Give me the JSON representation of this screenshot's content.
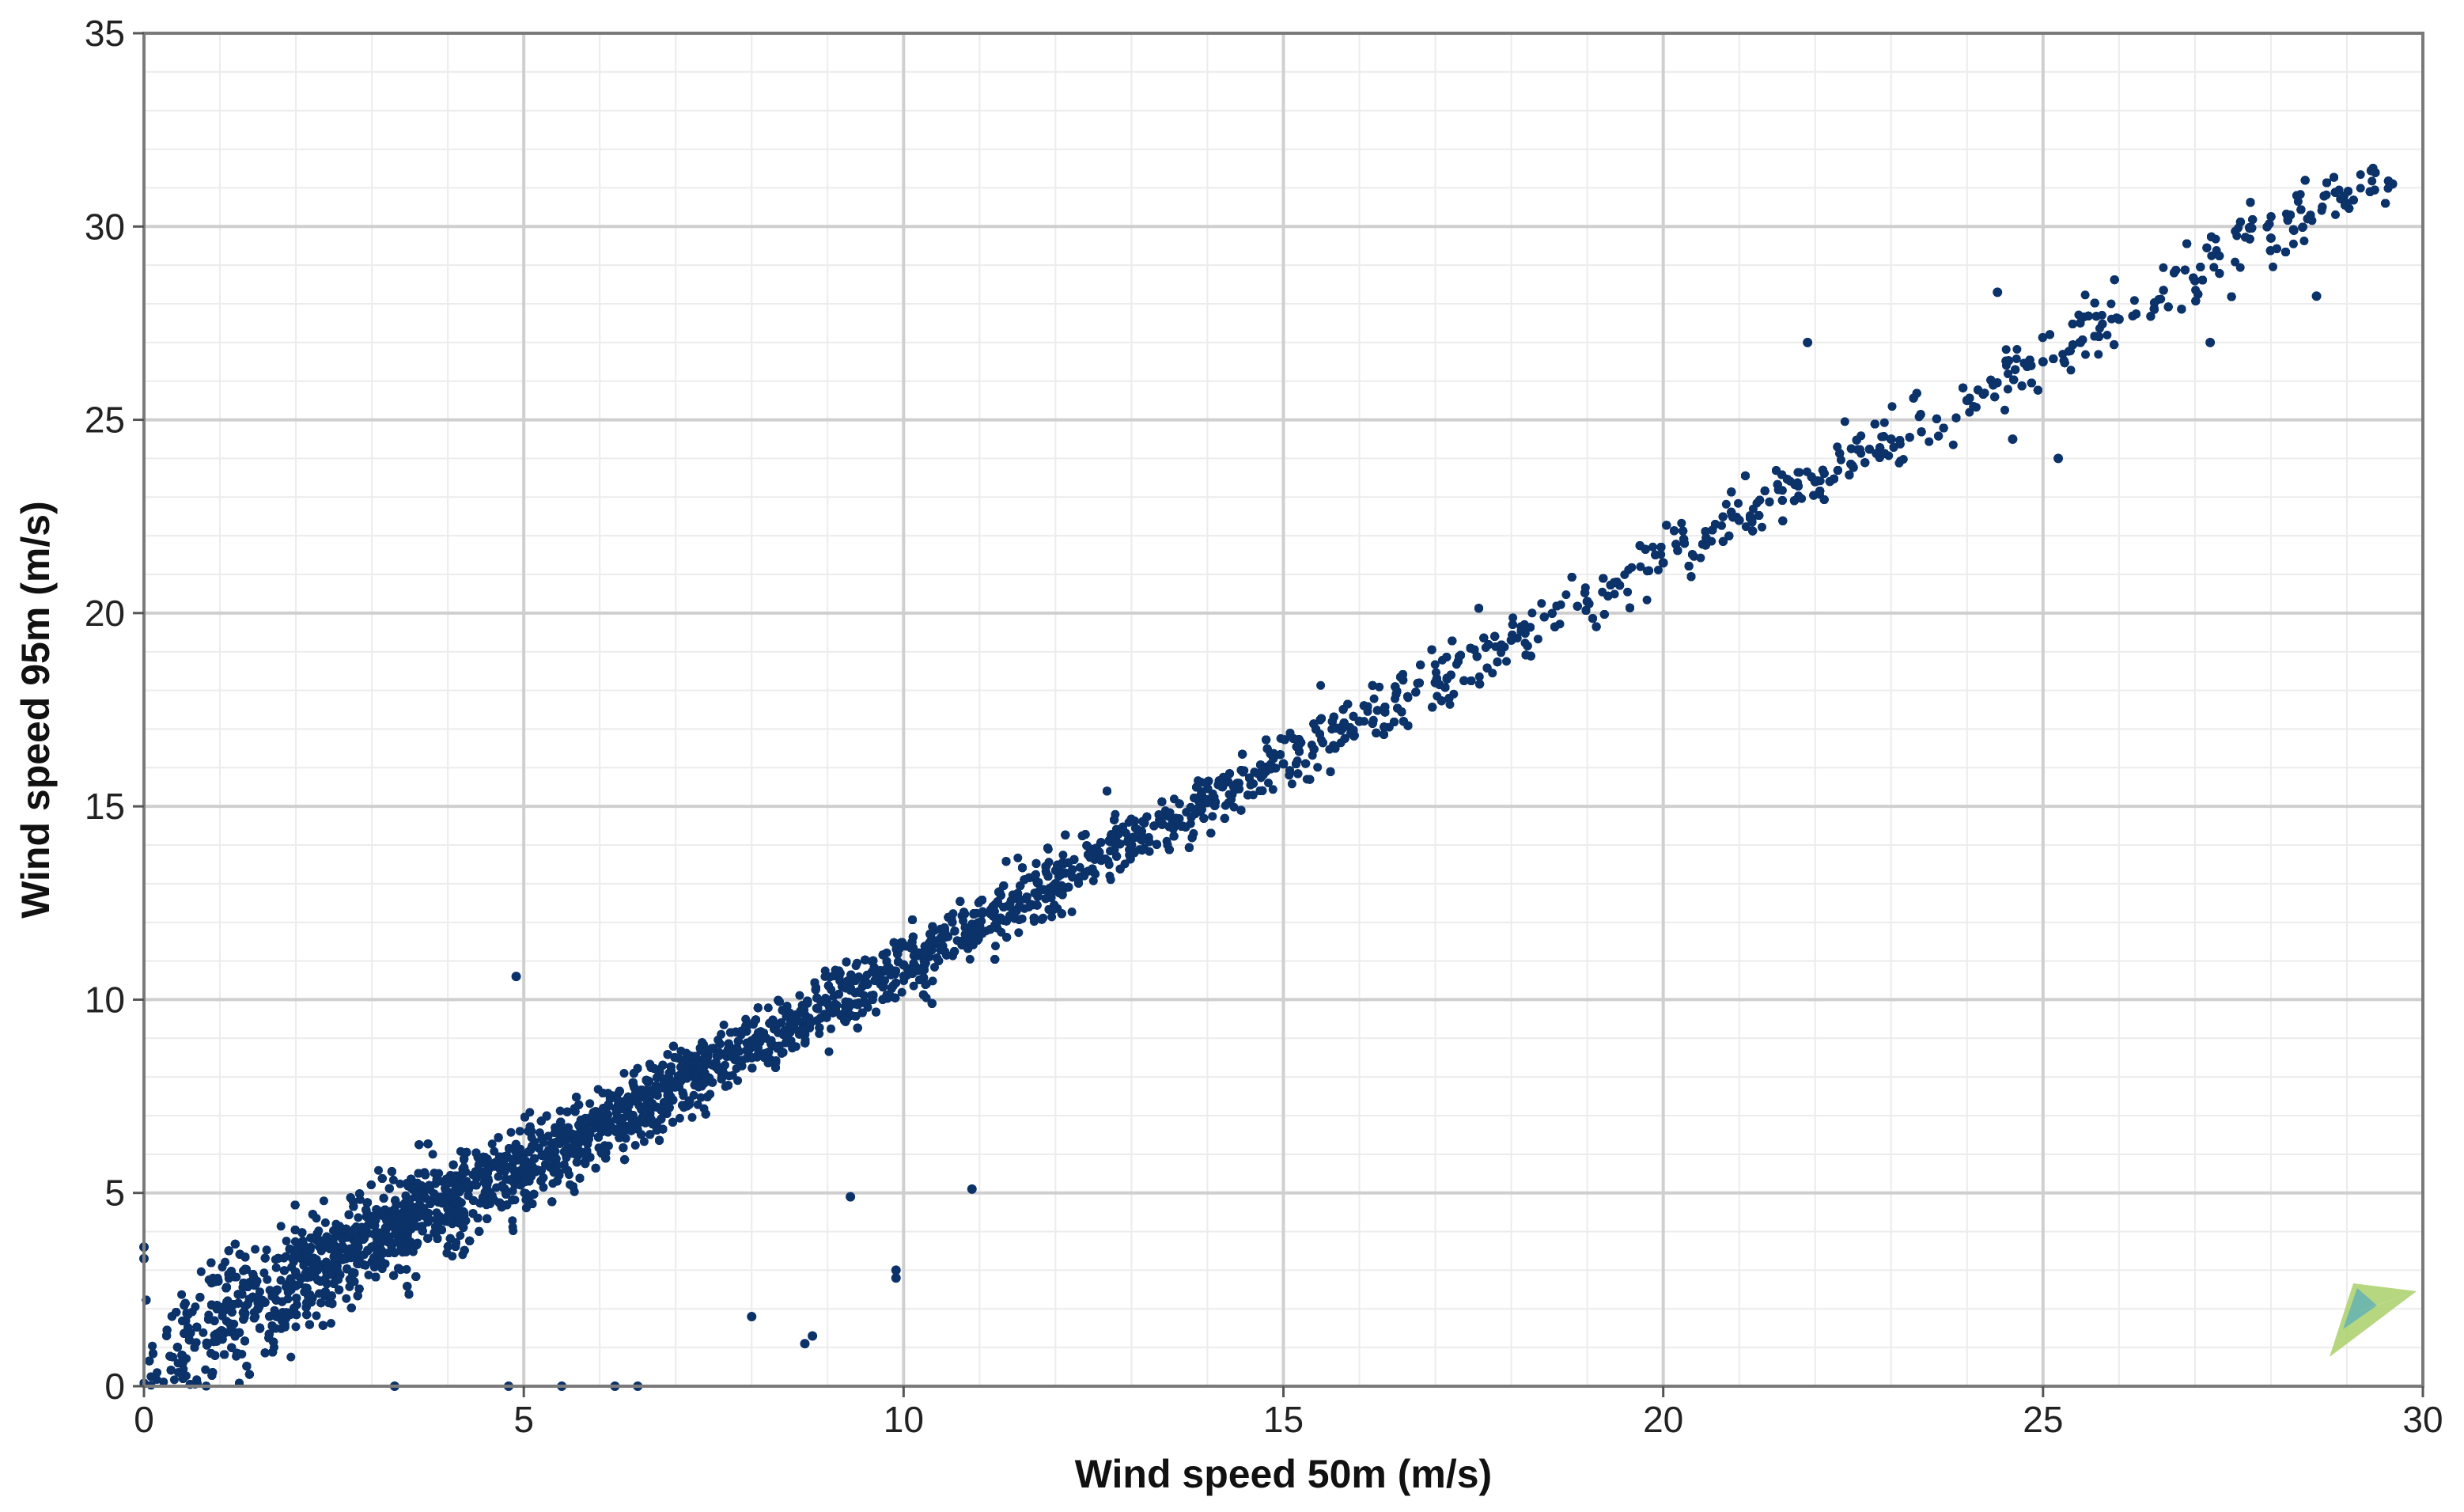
{
  "chart_data": {
    "type": "scatter",
    "title": "",
    "xlabel": "Wind speed 50m (m/s)",
    "ylabel": "Wind speed 95m (m/s)",
    "xlim": [
      0,
      30
    ],
    "ylim": [
      0,
      35
    ],
    "x_ticks": [
      "0",
      "5",
      "10",
      "15",
      "20",
      "25",
      "30"
    ],
    "y_ticks": [
      "0",
      "5",
      "10",
      "15",
      "20",
      "25",
      "30",
      "35"
    ],
    "grid": true,
    "legend": "none",
    "marker_color": "#0b3269",
    "point_count_approx": 30000,
    "relationship": {
      "slope": 1.05,
      "intercept": 0.4
    },
    "series": [
      {
        "points": [
          [
            0.5,
            0.8
          ],
          [
            1.0,
            1.4
          ],
          [
            1.5,
            2.0
          ],
          [
            2.0,
            2.6
          ],
          [
            2.5,
            3.1
          ],
          [
            3.0,
            3.6
          ],
          [
            4.0,
            4.6
          ],
          [
            5.0,
            5.6
          ],
          [
            6.0,
            6.7
          ],
          [
            7.0,
            7.8
          ],
          [
            8.0,
            8.8
          ],
          [
            9.0,
            9.9
          ],
          [
            10.0,
            10.9
          ],
          [
            11.0,
            11.9
          ],
          [
            12.0,
            13.0
          ],
          [
            13.0,
            14.0
          ],
          [
            14.0,
            15.1
          ],
          [
            15.0,
            16.1
          ],
          [
            16.0,
            17.2
          ],
          [
            17.0,
            18.2
          ],
          [
            18.0,
            19.3
          ],
          [
            19.0,
            20.3
          ],
          [
            20.0,
            21.3
          ],
          [
            21.0,
            22.4
          ],
          [
            22.0,
            23.4
          ],
          [
            23.0,
            24.5
          ],
          [
            24.0,
            25.5
          ],
          [
            25.0,
            26.5
          ],
          [
            26.0,
            27.6
          ],
          [
            27.0,
            28.6
          ],
          [
            28.0,
            29.7
          ],
          [
            29.0,
            30.6
          ],
          [
            29.6,
            31.1
          ]
        ],
        "outliers": [
          [
            0.0,
            3.6
          ],
          [
            0.0,
            3.3
          ],
          [
            4.9,
            10.6
          ],
          [
            8.0,
            8.5
          ],
          [
            9.3,
            4.9
          ],
          [
            10.9,
            5.1
          ],
          [
            9.9,
            3.0
          ],
          [
            9.9,
            2.8
          ],
          [
            8.8,
            1.3
          ],
          [
            8.7,
            1.1
          ],
          [
            8.0,
            1.8
          ],
          [
            21.9,
            27.0
          ],
          [
            24.4,
            28.3
          ],
          [
            28.6,
            28.2
          ],
          [
            27.2,
            27.0
          ],
          [
            25.2,
            24.0
          ],
          [
            24.6,
            24.5
          ],
          [
            3.3,
            0.0
          ],
          [
            4.8,
            0.0
          ],
          [
            6.5,
            0.0
          ],
          [
            6.2,
            0.0
          ],
          [
            5.5,
            0.0
          ]
        ]
      }
    ],
    "logo": "windographer-logo-icon"
  }
}
